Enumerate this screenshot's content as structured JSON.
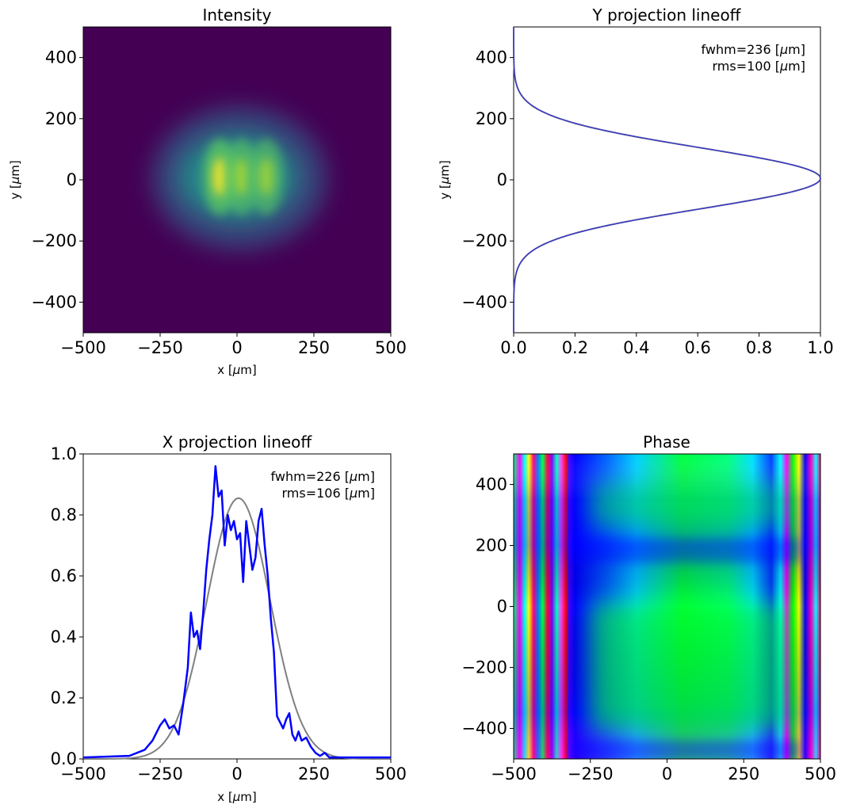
{
  "chart_data": [
    {
      "panel": "intensity",
      "type": "heatmap",
      "title": "Intensity",
      "xlabel": "x [$\\mu$m]",
      "ylabel": "y [$\\mu$m]",
      "xlim": [
        -500,
        500
      ],
      "ylim": [
        -500,
        500
      ],
      "xticks": [
        -500,
        -250,
        0,
        250,
        500
      ],
      "yticks": [
        -400,
        -200,
        0,
        200,
        400
      ],
      "xtick_labels": [
        "−500",
        "−250",
        "0",
        "250",
        "500"
      ],
      "ytick_labels": [
        "−400",
        "−200",
        "0",
        "200",
        "400"
      ],
      "colormap": "viridis",
      "peaks": [
        {
          "x": -55,
          "y": 10,
          "value": 1.0
        },
        {
          "x": 15,
          "y": 10,
          "value": 0.82
        },
        {
          "x": 95,
          "y": 10,
          "value": 0.78
        }
      ]
    },
    {
      "panel": "y-projection",
      "type": "line",
      "title": "Y projection lineoff",
      "ylabel": "y [$\\mu$m]",
      "xlim": [
        0,
        1.0
      ],
      "ylim": [
        -500,
        500
      ],
      "xticks": [
        0,
        0.2,
        0.4,
        0.6,
        0.8,
        1.0
      ],
      "yticks": [
        -400,
        -200,
        0,
        200,
        400
      ],
      "xtick_labels": [
        "0.0",
        "0.2",
        "0.4",
        "0.6",
        "0.8",
        "1.0"
      ],
      "ytick_labels": [
        "−400",
        "−200",
        "0",
        "200",
        "400"
      ],
      "annotations": [
        "fwhm=236  [$\\mu$m]",
        "rms=100 [$\\mu$m]"
      ],
      "series": [
        {
          "color": "#0000ff",
          "fwhm": 236,
          "center": 5
        },
        {
          "color": "#808080",
          "fwhm": 236,
          "center": 5
        }
      ]
    },
    {
      "panel": "x-projection",
      "type": "line",
      "title": "X projection lineoff",
      "xlabel": "x [$\\mu$m]",
      "xlim": [
        -500,
        500
      ],
      "ylim": [
        0,
        1.0
      ],
      "xticks": [
        -500,
        -250,
        0,
        250,
        500
      ],
      "yticks": [
        0,
        0.2,
        0.4,
        0.6,
        0.8,
        1.0
      ],
      "xtick_labels": [
        "−500",
        "−250",
        "0",
        "250",
        "500"
      ],
      "ytick_labels": [
        "0.0",
        "0.2",
        "0.4",
        "0.6",
        "0.8",
        "1.0"
      ],
      "annotations": [
        "fwhm=226  [$\\mu$m]",
        "rms=106 [$\\mu$m]"
      ],
      "series": [
        {
          "color": "#0000ff",
          "x": [
            -500,
            -350,
            -300,
            -275,
            -250,
            -235,
            -220,
            -205,
            -190,
            -175,
            -160,
            -150,
            -140,
            -130,
            -120,
            -110,
            -100,
            -90,
            -80,
            -70,
            -60,
            -50,
            -40,
            -30,
            -20,
            -10,
            0,
            10,
            20,
            30,
            40,
            50,
            60,
            70,
            80,
            90,
            100,
            110,
            120,
            130,
            140,
            150,
            160,
            170,
            180,
            190,
            200,
            210,
            225,
            240,
            255,
            270,
            285,
            300,
            330,
            400,
            500
          ],
          "y": [
            0.005,
            0.01,
            0.03,
            0.06,
            0.11,
            0.13,
            0.1,
            0.11,
            0.08,
            0.18,
            0.3,
            0.48,
            0.4,
            0.42,
            0.36,
            0.48,
            0.62,
            0.72,
            0.8,
            0.96,
            0.86,
            0.88,
            0.7,
            0.8,
            0.75,
            0.78,
            0.72,
            0.74,
            0.58,
            0.78,
            0.7,
            0.62,
            0.66,
            0.78,
            0.82,
            0.7,
            0.6,
            0.46,
            0.35,
            0.14,
            0.12,
            0.1,
            0.13,
            0.15,
            0.08,
            0.06,
            0.09,
            0.06,
            0.07,
            0.04,
            0.02,
            0.01,
            0.02,
            0.005,
            0.005,
            0.005,
            0.005
          ]
        },
        {
          "color": "#808080",
          "gaussian": {
            "amplitude": 0.855,
            "center": 5,
            "sigma": 103
          }
        }
      ]
    },
    {
      "panel": "phase",
      "type": "heatmap",
      "title": "Phase",
      "xlim": [
        -500,
        500
      ],
      "ylim": [
        -500,
        500
      ],
      "xticks": [
        -500,
        -250,
        0,
        250,
        500
      ],
      "yticks": [
        -400,
        -200,
        0,
        200,
        400
      ],
      "xtick_labels": [
        "−500",
        "−250",
        "0",
        "250",
        "500"
      ],
      "ytick_labels": [
        "−400",
        "−200",
        "0",
        "200",
        "400"
      ],
      "colormap": "hsv"
    }
  ]
}
